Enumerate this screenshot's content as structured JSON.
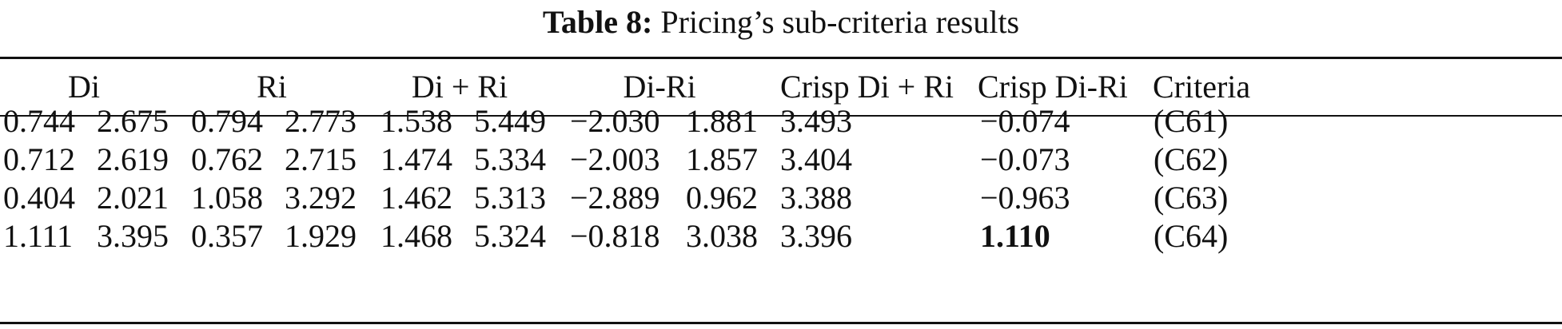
{
  "caption": {
    "label": "Table 8:",
    "title": "Pricing’s sub-criteria results"
  },
  "headers": [
    "Di",
    "Ri",
    "Di + Ri",
    "Di-Ri",
    "Crisp Di + Ri",
    "Crisp Di-Ri",
    "Criteria"
  ],
  "rows": [
    [
      "0.744",
      "2.675",
      "0.794",
      "2.773",
      "1.538",
      "5.449",
      "−2.030",
      "1.881",
      "3.493",
      "−0.074",
      "(C61)"
    ],
    [
      "0.712",
      "2.619",
      "0.762",
      "2.715",
      "1.474",
      "5.334",
      "−2.003",
      "1.857",
      "3.404",
      "−0.073",
      "(C62)"
    ],
    [
      "0.404",
      "2.021",
      "1.058",
      "3.292",
      "1.462",
      "5.313",
      "−2.889",
      "0.962",
      "3.388",
      "−0.963",
      "(C63)"
    ],
    [
      "1.111",
      "3.395",
      "0.357",
      "1.929",
      "1.468",
      "5.324",
      "−0.818",
      "3.038",
      "3.396",
      "1.110",
      "(C64)"
    ]
  ],
  "emphasis": {
    "row": 3,
    "col": 9,
    "style": "bold"
  }
}
